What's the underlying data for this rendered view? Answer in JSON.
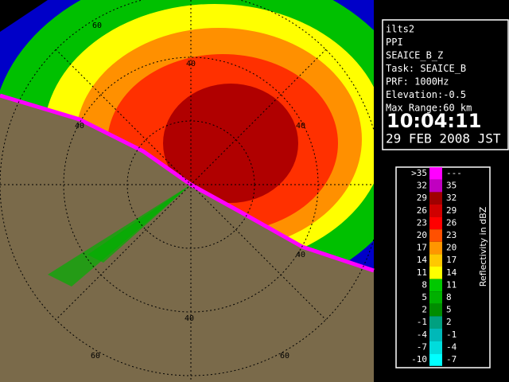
{
  "info": {
    "lines": [
      "ilts2",
      "PPI",
      "SEAICE_B_Z",
      "Task: SEAICE_B",
      "PRF: 1000Hz",
      "Elevation:-0.5",
      "Max Range:60 km"
    ],
    "time": "10:04:11",
    "date": "29 FEB 2008 JST"
  },
  "legend": {
    "title": "Reflectivity in dBZ",
    "rows": [
      {
        "low": ">35",
        "high": "---",
        "color": "#ff00ff"
      },
      {
        "low": "32",
        "high": "35",
        "color": "#c000c0"
      },
      {
        "low": "29",
        "high": "32",
        "color": "#a00000"
      },
      {
        "low": "26",
        "high": "29",
        "color": "#d00000"
      },
      {
        "low": "23",
        "high": "26",
        "color": "#ff0000"
      },
      {
        "low": "20",
        "high": "23",
        "color": "#ff5000"
      },
      {
        "low": "17",
        "high": "20",
        "color": "#ff9600"
      },
      {
        "low": "14",
        "high": "17",
        "color": "#ffc800"
      },
      {
        "low": "11",
        "high": "14",
        "color": "#ffff00"
      },
      {
        "low": "8",
        "high": "11",
        "color": "#00c800"
      },
      {
        "low": "5",
        "high": "8",
        "color": "#00b000"
      },
      {
        "low": "2",
        "high": "5",
        "color": "#008c00"
      },
      {
        "low": "-1",
        "high": "2",
        "color": "#00a080"
      },
      {
        "low": "-4",
        "high": "-1",
        "color": "#00b8b8"
      },
      {
        "low": "-7",
        "high": "-4",
        "color": "#00dcdc"
      },
      {
        "low": "-10",
        "high": "-7",
        "color": "#00ffff"
      }
    ]
  },
  "range_labels": [
    "60",
    "40",
    "40",
    "40",
    "40",
    "40",
    "60",
    "60"
  ]
}
